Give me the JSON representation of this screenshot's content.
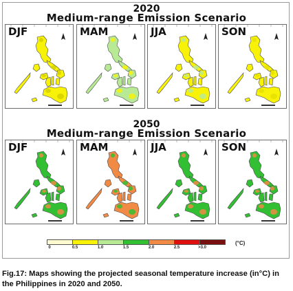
{
  "sections": [
    {
      "year": "2020",
      "scenario": "Medium-range Emission Scenario",
      "panels": [
        {
          "season": "DJF",
          "main_color": "#f7f207",
          "accent_color": "#d6d000",
          "level": "0.5-1.0"
        },
        {
          "season": "MAM",
          "main_color": "#b8ea95",
          "accent_color": "#f7f207",
          "level": "1.0-1.5"
        },
        {
          "season": "JJA",
          "main_color": "#f7f207",
          "accent_color": "#b8ea95",
          "level": "0.5-1.0"
        },
        {
          "season": "SON",
          "main_color": "#f7f207",
          "accent_color": "#e6e000",
          "level": "0.5-1.0"
        }
      ]
    },
    {
      "year": "2050",
      "scenario": "Medium-range Emission Scenario",
      "panels": [
        {
          "season": "DJF",
          "main_color": "#33bf33",
          "accent_color": "#f08a45",
          "level": "1.5-2.0"
        },
        {
          "season": "MAM",
          "main_color": "#f08a45",
          "accent_color": "#33bf33",
          "level": "2.0-2.5"
        },
        {
          "season": "JJA",
          "main_color": "#33bf33",
          "accent_color": "#f08a45",
          "level": "1.5-2.0"
        },
        {
          "season": "SON",
          "main_color": "#33bf33",
          "accent_color": "#f08a45",
          "level": "1.5-2.0"
        }
      ]
    }
  ],
  "legend": {
    "unit": "(°C)",
    "labels": [
      "0",
      "0.5",
      "1.0",
      "1.5",
      "2.0",
      "2.5",
      ">3.0"
    ],
    "colors": [
      "#fffbd0",
      "#f7f207",
      "#b8ea95",
      "#33bf33",
      "#f08a45",
      "#e01010",
      "#7a1010"
    ]
  },
  "caption": "Fig.17: Maps showing the projected seasonal temperature increase (in°C) in the Philippines in 2020 and 2050."
}
